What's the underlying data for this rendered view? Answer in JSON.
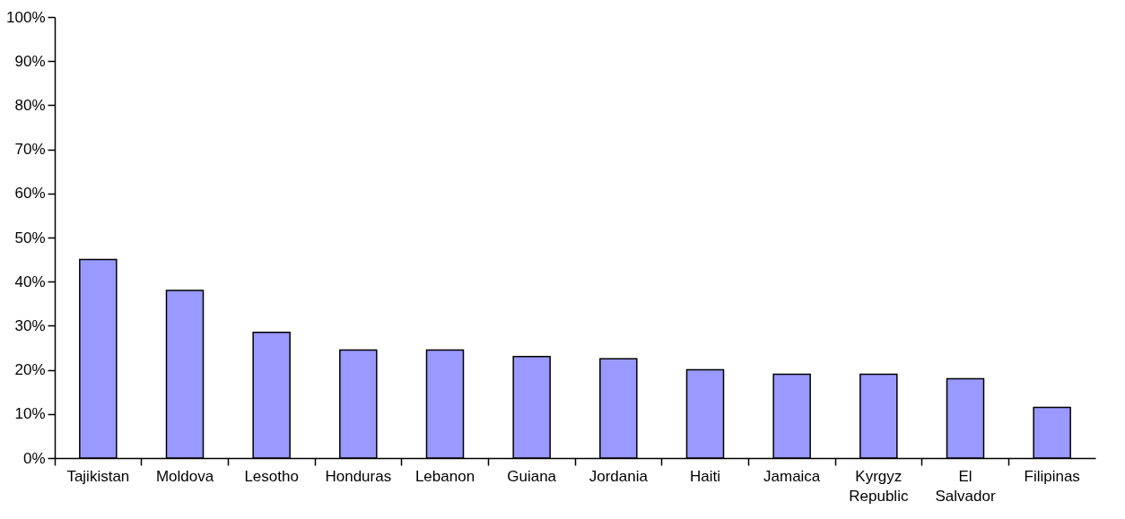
{
  "chart_data": {
    "type": "bar",
    "categories": [
      "Tajikistan",
      "Moldova",
      "Lesotho",
      "Honduras",
      "Lebanon",
      "Guiana",
      "Jordania",
      "Haiti",
      "Jamaica",
      "Kyrgyz Republic",
      "El Salvador",
      "Filipinas"
    ],
    "values": [
      45,
      38,
      28.5,
      24.5,
      24.5,
      23,
      22.5,
      20,
      19,
      19,
      18,
      11.5
    ],
    "color": "#9999ff",
    "ylim": [
      0,
      100
    ],
    "yticks": [
      {
        "value": 0,
        "label": "0%"
      },
      {
        "value": 10,
        "label": "10%"
      },
      {
        "value": 20,
        "label": "20%"
      },
      {
        "value": 30,
        "label": "30%"
      },
      {
        "value": 40,
        "label": "40%"
      },
      {
        "value": 50,
        "label": "50%"
      },
      {
        "value": 60,
        "label": "60%"
      },
      {
        "value": 70,
        "label": "70%"
      },
      {
        "value": 80,
        "label": "80%"
      },
      {
        "value": 90,
        "label": "90%"
      },
      {
        "value": 100,
        "label": "100%"
      }
    ]
  }
}
